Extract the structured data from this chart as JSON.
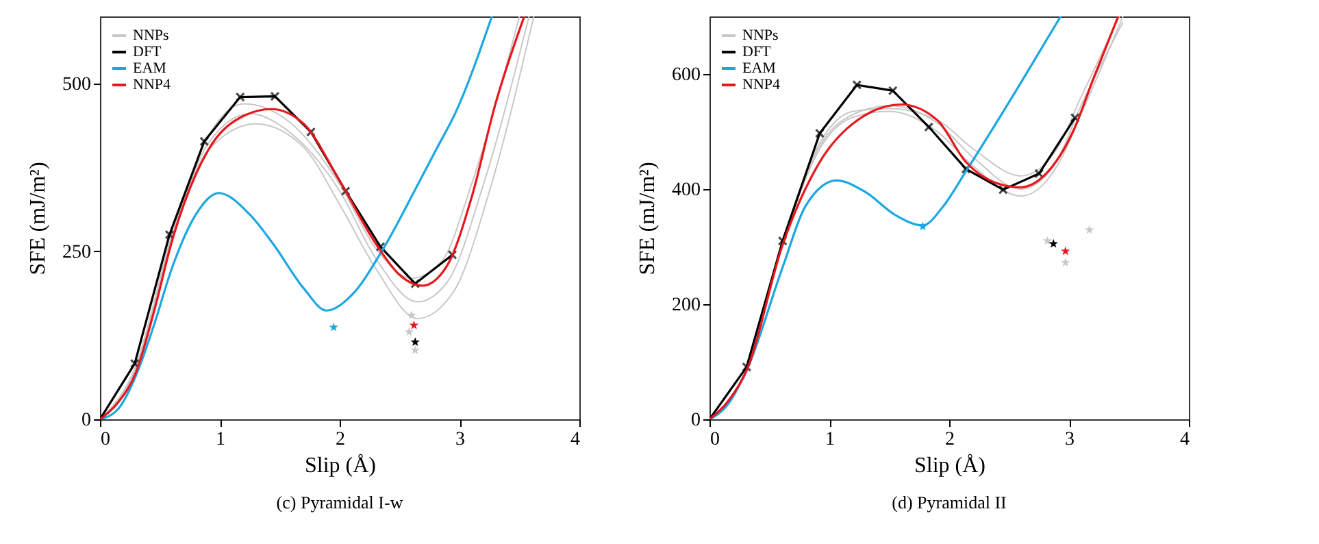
{
  "chart_data": [
    {
      "type": "line",
      "title": "(c) Pyramidal I-w",
      "xlabel": "Slip (Å)",
      "ylabel": "SFE (mJ/m²)",
      "xlim": [
        0,
        4
      ],
      "ylim": [
        0,
        600
      ],
      "xticks": [
        0,
        1,
        2,
        3,
        4
      ],
      "yticks": [
        0,
        250,
        500
      ],
      "grid": false,
      "legend": "top left",
      "series": [
        {
          "name": "NNPs",
          "color": "#c8c8c8",
          "x": [
            0,
            0.3,
            0.6,
            0.9,
            1.25,
            1.6,
            2.0,
            2.3,
            2.65,
            2.9,
            3.2,
            3.58
          ],
          "values": [
            0,
            78,
            270,
            410,
            455,
            425,
            340,
            240,
            175,
            205,
            350,
            600
          ]
        },
        {
          "color": "#c8c8c8",
          "x": [
            0,
            0.3,
            0.6,
            0.9,
            1.3,
            1.7,
            2.0,
            2.3,
            2.65,
            2.95,
            3.25,
            3.62
          ],
          "values": [
            0,
            78,
            268,
            400,
            440,
            405,
            320,
            225,
            150,
            190,
            340,
            600
          ]
        },
        {
          "color": "#c8c8c8",
          "x": [
            0,
            0.3,
            0.6,
            0.9,
            1.2,
            1.6,
            2.0,
            2.3,
            2.6,
            2.85,
            3.1,
            3.5
          ],
          "values": [
            0,
            80,
            275,
            420,
            470,
            440,
            350,
            255,
            210,
            235,
            350,
            600
          ]
        },
        {
          "name": "DFT",
          "color": "#000000",
          "marker": "cross",
          "x": [
            0,
            0.29,
            0.58,
            0.87,
            1.17,
            1.46,
            1.76,
            2.05,
            2.34,
            2.63,
            2.94
          ],
          "values": [
            0,
            83,
            275,
            414,
            480,
            481,
            428,
            340,
            257,
            202,
            245
          ]
        },
        {
          "name": "EAM",
          "color": "#1aa7e2",
          "x": [
            0,
            0.15,
            0.3,
            0.45,
            0.6,
            0.8,
            0.99,
            1.25,
            1.45,
            1.7,
            1.89,
            2.1,
            2.36,
            2.63,
            2.8,
            2.97,
            3.27
          ],
          "values": [
            0,
            15,
            65,
            140,
            225,
            305,
            337,
            305,
            260,
            195,
            162,
            185,
            253,
            342,
            400,
            458,
            600
          ]
        },
        {
          "name": "NNP4",
          "color": "#e8161b",
          "x": [
            0,
            0.15,
            0.3,
            0.45,
            0.6,
            0.9,
            1.2,
            1.43,
            1.7,
            2.0,
            2.3,
            2.5,
            2.69,
            2.9,
            3.1,
            3.3,
            3.54
          ],
          "values": [
            0,
            25,
            70,
            160,
            265,
            400,
            452,
            462,
            440,
            355,
            262,
            215,
            199,
            230,
            330,
            470,
            600
          ]
        },
        {
          "type": "scatter",
          "marker": "star",
          "color": "#c8c8c8",
          "x": [
            2.6,
            2.58,
            2.63
          ],
          "values": [
            155,
            130,
            103
          ]
        },
        {
          "type": "scatter",
          "marker": "star",
          "color": "#1aa7e2",
          "x": [
            1.95
          ],
          "values": [
            137
          ]
        },
        {
          "type": "scatter",
          "marker": "star",
          "color": "#e8161b",
          "x": [
            2.62
          ],
          "values": [
            140
          ]
        },
        {
          "type": "scatter",
          "marker": "star",
          "color": "#000000",
          "x": [
            2.63
          ],
          "values": [
            115
          ]
        }
      ]
    },
    {
      "type": "line",
      "title": "(d) Pyramidal II",
      "xlabel": "Slip (Å)",
      "ylabel": "SFE (mJ/m²)",
      "xlim": [
        0,
        4
      ],
      "ylim": [
        0,
        700
      ],
      "xticks": [
        0,
        1,
        2,
        3,
        4
      ],
      "yticks": [
        0,
        200,
        400,
        600
      ],
      "grid": false,
      "legend": "top left",
      "series": [
        {
          "name": "NNPs",
          "color": "#c8c8c8",
          "x": [
            0,
            0.31,
            0.61,
            0.92,
            1.2,
            1.5,
            1.9,
            2.2,
            2.6,
            2.9,
            3.1,
            3.45
          ],
          "values": [
            0,
            88,
            305,
            470,
            525,
            535,
            500,
            440,
            388,
            440,
            530,
            700
          ]
        },
        {
          "color": "#c8c8c8",
          "x": [
            0,
            0.31,
            0.61,
            0.92,
            1.2,
            1.5,
            1.9,
            2.2,
            2.6,
            2.9,
            3.1,
            3.45
          ],
          "values": [
            0,
            88,
            305,
            475,
            530,
            545,
            515,
            455,
            400,
            450,
            545,
            690
          ]
        },
        {
          "color": "#c8c8c8",
          "x": [
            0,
            0.31,
            0.61,
            0.92,
            1.2,
            1.5,
            1.9,
            2.2,
            2.6,
            2.9,
            3.1,
            3.42
          ],
          "values": [
            0,
            90,
            310,
            480,
            535,
            540,
            520,
            470,
            423,
            470,
            560,
            700
          ]
        },
        {
          "name": "DFT",
          "color": "#000000",
          "marker": "cross",
          "x": [
            0,
            0.31,
            0.61,
            0.92,
            1.23,
            1.53,
            1.83,
            2.14,
            2.45,
            2.75,
            3.05
          ],
          "values": [
            0,
            91,
            310,
            497,
            581,
            571,
            508,
            435,
            399,
            427,
            524
          ]
        },
        {
          "name": "EAM",
          "color": "#1aa7e2",
          "x": [
            0,
            0.15,
            0.31,
            0.61,
            0.8,
            1.06,
            1.3,
            1.55,
            1.78,
            1.95,
            2.14,
            2.59,
            2.93
          ],
          "values": [
            0,
            25,
            85,
            264,
            370,
            415,
            395,
            355,
            337,
            370,
            431,
            582,
            700
          ]
        },
        {
          "name": "NNP4",
          "color": "#e8161b",
          "x": [
            0,
            0.15,
            0.31,
            0.61,
            0.92,
            1.23,
            1.6,
            1.9,
            2.14,
            2.4,
            2.59,
            2.8,
            3.04,
            3.2,
            3.41
          ],
          "values": [
            0,
            30,
            85,
            303,
            447,
            519,
            547,
            520,
            447,
            410,
            403,
            425,
            503,
            590,
            700
          ]
        },
        {
          "type": "scatter",
          "marker": "star",
          "color": "#c8c8c8",
          "x": [
            2.82,
            2.97,
            3.17
          ],
          "values": [
            310,
            272,
            329
          ]
        },
        {
          "type": "scatter",
          "marker": "star",
          "color": "#1aa7e2",
          "x": [
            1.78
          ],
          "values": [
            335
          ]
        },
        {
          "type": "scatter",
          "marker": "star",
          "color": "#e8161b",
          "x": [
            2.97
          ],
          "values": [
            292
          ]
        },
        {
          "type": "scatter",
          "marker": "star",
          "color": "#000000",
          "x": [
            2.87
          ],
          "values": [
            305
          ]
        }
      ]
    }
  ]
}
